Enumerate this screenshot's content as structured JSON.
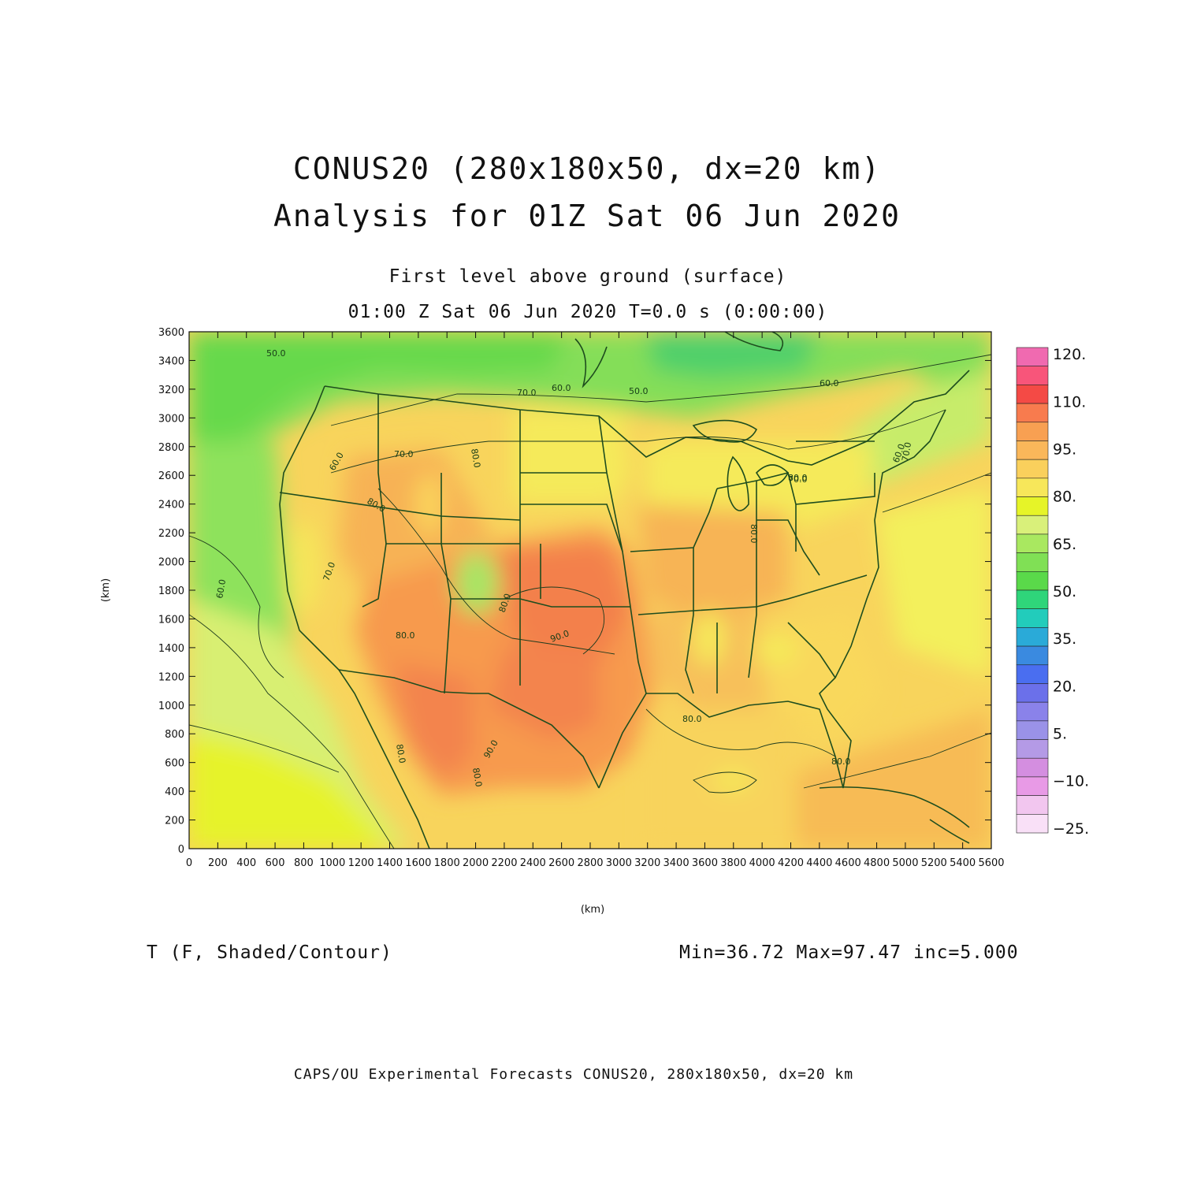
{
  "title": {
    "line1": "CONUS20 (280x180x50, dx=20 km)",
    "line2": "Analysis for 01Z Sat 06 Jun 2020"
  },
  "subtitle": {
    "level": "First level above ground (surface)",
    "time": "01:00 Z Sat 06 Jun 2020    T=0.0 s (0:00:00)"
  },
  "field_label": "T (F, Shaded/Contour)",
  "stats": "Min=36.72 Max=97.47 inc=5.000",
  "footer": "CAPS/OU Experimental Forecasts  CONUS20, 280x180x50, dx=20 km",
  "axes": {
    "x_label": "(km)",
    "y_label": "(km)",
    "x_ticks": [
      "0",
      "200",
      "400",
      "600",
      "800",
      "1000",
      "1200",
      "1400",
      "1600",
      "1800",
      "2000",
      "2200",
      "2400",
      "2600",
      "2800",
      "3000",
      "3200",
      "3400",
      "3600",
      "3800",
      "4000",
      "4200",
      "4400",
      "4600",
      "4800",
      "5000",
      "5200",
      "5400",
      "5600"
    ],
    "y_ticks": [
      "0",
      "200",
      "400",
      "600",
      "800",
      "1000",
      "1200",
      "1400",
      "1600",
      "1800",
      "2000",
      "2200",
      "2400",
      "2600",
      "2800",
      "3000",
      "3200",
      "3400",
      "3600"
    ]
  },
  "colorbar": {
    "labels": [
      "120.",
      "110.",
      "95.",
      "80.",
      "65.",
      "50.",
      "35.",
      "20.",
      "5.",
      "−10.",
      "−25."
    ],
    "colors_top_to_bottom": [
      "#f06ab0",
      "#f8557a",
      "#f44a45",
      "#f87b4e",
      "#f8a052",
      "#fab75a",
      "#fad05c",
      "#f7e75a",
      "#e6f428",
      "#d9f07a",
      "#a9e860",
      "#80e055",
      "#5ad94a",
      "#2fd57a",
      "#22ccbb",
      "#2aaad8",
      "#3a8ae0",
      "#4a6ef0",
      "#6b70ea",
      "#8a82ea",
      "#9a92e8",
      "#b49ae6",
      "#d48ee0",
      "#e89ae6",
      "#f2c6ef",
      "#f9e0f7"
    ]
  },
  "contour_labels": [
    "50.0",
    "60.0",
    "70.0",
    "60.0",
    "50.0",
    "60.0",
    "60.0",
    "70.0",
    "70.0",
    "80.0",
    "80.0",
    "80.0",
    "60.0",
    "80.0",
    "90.0",
    "80.0",
    "80.0",
    "90.0",
    "80.0",
    "80.0",
    "80.0",
    "80.0",
    "70.0",
    "70.0"
  ],
  "colors": {
    "border": "#1e4d1e",
    "background": "#ffffff"
  }
}
